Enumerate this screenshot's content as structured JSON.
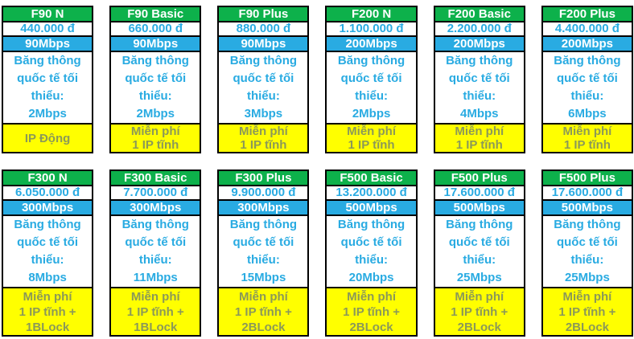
{
  "colors": {
    "header_bg": "#0db14b",
    "speed_band_bg": "#29abe2",
    "accent_text": "#29abe2",
    "footer_bg": "#ffff00",
    "footer_text": "#8b9958",
    "border": "#000000",
    "header_text": "#ffffff"
  },
  "pricing": {
    "intl_label": "Băng thông quốc tế tối thiểu:",
    "cards": [
      {
        "name": "F90 N",
        "price": "440.000 đ",
        "speed": "90Mbps",
        "intl_min": "2Mbps",
        "footer": [
          "IP Động"
        ]
      },
      {
        "name": "F90 Basic",
        "price": "660.000 đ",
        "speed": "90Mbps",
        "intl_min": "2Mbps",
        "footer": [
          "Miễn phí",
          "1 IP tĩnh"
        ]
      },
      {
        "name": "F90 Plus",
        "price": "880.000 đ",
        "speed": "90Mbps",
        "intl_min": "3Mbps",
        "footer": [
          "Miễn phí",
          "1 IP tĩnh"
        ]
      },
      {
        "name": "F200 N",
        "price": "1.100.000 đ",
        "speed": "200Mbps",
        "intl_min": "2Mbps",
        "footer": [
          "Miễn phí",
          "1 IP tĩnh"
        ]
      },
      {
        "name": "F200 Basic",
        "price": "2.200.000 đ",
        "speed": "200Mbps",
        "intl_min": "4Mbps",
        "footer": [
          "Miễn phí",
          "1 IP tĩnh"
        ]
      },
      {
        "name": "F200 Plus",
        "price": "4.400.000 đ",
        "speed": "200Mbps",
        "intl_min": "6Mbps",
        "footer": [
          "Miễn phí",
          "1 IP tĩnh"
        ]
      },
      {
        "name": "F300 N",
        "price": "6.050.000 đ",
        "speed": "300Mbps",
        "intl_min": "8Mbps",
        "footer": [
          "Miễn phí",
          "1 IP tĩnh +",
          "1BLock"
        ]
      },
      {
        "name": "F300 Basic",
        "price": "7.700.000 đ",
        "speed": "300Mbps",
        "intl_min": "11Mbps",
        "footer": [
          "Miễn phí",
          "1 IP tĩnh +",
          "1BLock"
        ]
      },
      {
        "name": "F300 Plus",
        "price": "9.900.000 đ",
        "speed": "300Mbps",
        "intl_min": "15Mbps",
        "footer": [
          "Miễn phí",
          "1 IP tĩnh +",
          "2BLock"
        ]
      },
      {
        "name": "F500 Basic",
        "price": "13.200.000 đ",
        "speed": "500Mbps",
        "intl_min": "20Mbps",
        "footer": [
          "Miễn phí",
          "1 IP tĩnh +",
          "2BLock"
        ]
      },
      {
        "name": "F500 Plus",
        "price": "17.600.000 đ",
        "speed": "500Mbps",
        "intl_min": "25Mbps",
        "footer": [
          "Miễn phí",
          "1 IP tĩnh +",
          "2BLock"
        ]
      },
      {
        "name": "F500 Plus",
        "price": "17.600.000 đ",
        "speed": "500Mbps",
        "intl_min": "25Mbps",
        "footer": [
          "Miễn phí",
          "1 IP tĩnh +",
          "2BLock"
        ]
      }
    ]
  }
}
